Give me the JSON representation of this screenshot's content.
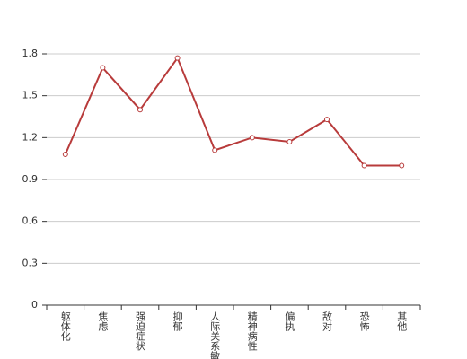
{
  "chart_data": {
    "type": "line",
    "categories": [
      "躯体化",
      "焦虑",
      "强迫症状",
      "抑郁",
      "人际关系敏感",
      "精神病性",
      "偏执",
      "敌对",
      "恐怖",
      "其他"
    ],
    "values": [
      1.08,
      1.7,
      1.4,
      1.77,
      1.11,
      1.2,
      1.17,
      1.33,
      1.0,
      1.0
    ],
    "color": "#b83b3b",
    "ylim": [
      0,
      1.8
    ],
    "yticks": [
      0,
      0.3,
      0.6,
      0.9,
      1.2,
      1.5,
      1.8
    ],
    "grid": true
  }
}
